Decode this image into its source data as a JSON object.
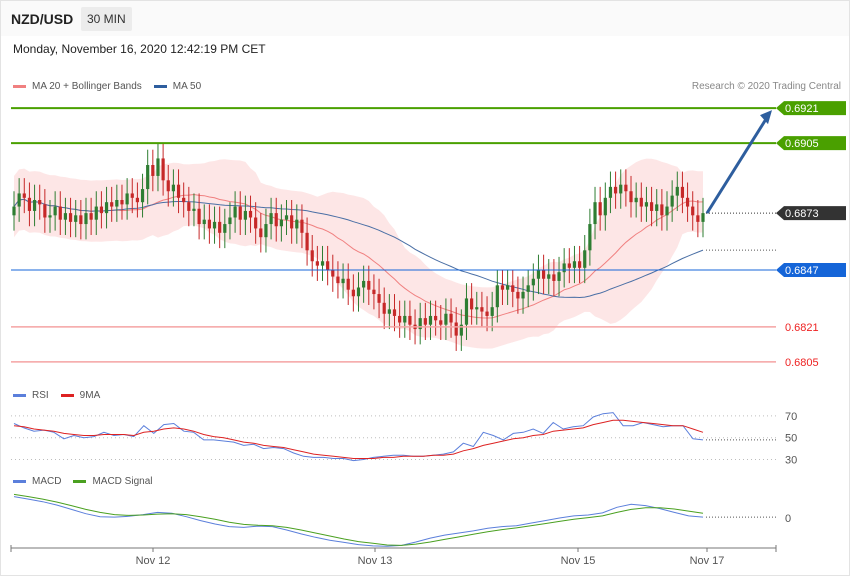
{
  "header": {
    "symbol": "NZD/USD",
    "timeframe": "30 MIN",
    "datetime": "Monday, November 16, 2020 12:42:19 PM CET"
  },
  "legend_main": [
    {
      "label": "MA 20 + Bollinger Bands",
      "color": "#f08080"
    },
    {
      "label": "MA 50",
      "color": "#2e5e9e"
    }
  ],
  "legend_rsi": [
    {
      "label": "RSI",
      "color": "#5b7fdb"
    },
    {
      "label": "9MA",
      "color": "#dd2222"
    }
  ],
  "legend_macd": [
    {
      "label": "MACD",
      "color": "#5b7fdb"
    },
    {
      "label": "MACD Signal",
      "color": "#4aa020"
    }
  ],
  "credit": "Research © 2020 Trading Central",
  "colors": {
    "up": "#2e7d32",
    "down": "#c62828",
    "band": "#fde2e2",
    "ma20": "#f08080",
    "ma50": "#4a6fa5",
    "arrow": "#2e5e9e"
  },
  "chart_data": [
    {
      "type": "candlestick",
      "symbol": "NZD/USD",
      "x_ticks": [
        "Nov 12",
        "Nov 13",
        "Nov 15",
        "Nov 17"
      ],
      "ylim": [
        0.6799,
        0.6927
      ],
      "levels": [
        {
          "value": 0.6921,
          "label": "0.6921",
          "style": "resistance",
          "color": "#4aa000"
        },
        {
          "value": 0.6905,
          "label": "0.6905",
          "style": "resistance",
          "color": "#4aa000"
        },
        {
          "value": 0.6873,
          "label": "0.6873",
          "style": "last",
          "color": "#333333"
        },
        {
          "value": 0.6847,
          "label": "0.6847",
          "style": "pivot",
          "color": "#1565d8"
        },
        {
          "value": 0.6821,
          "label": "0.6821",
          "style": "support",
          "color": "#ee2222"
        },
        {
          "value": 0.6805,
          "label": "0.6805",
          "style": "support",
          "color": "#ee2222"
        }
      ],
      "close": [
        0.6876,
        0.6882,
        0.688,
        0.6874,
        0.6879,
        0.6877,
        0.6871,
        0.6872,
        0.6876,
        0.687,
        0.6873,
        0.6869,
        0.6872,
        0.6868,
        0.6873,
        0.687,
        0.6876,
        0.6873,
        0.6878,
        0.6876,
        0.6879,
        0.6877,
        0.6882,
        0.688,
        0.6878,
        0.6884,
        0.6895,
        0.689,
        0.6898,
        0.6888,
        0.6883,
        0.6886,
        0.688,
        0.6878,
        0.6874,
        0.6875,
        0.6868,
        0.687,
        0.6866,
        0.6869,
        0.6864,
        0.6868,
        0.6871,
        0.6876,
        0.687,
        0.6874,
        0.6871,
        0.6866,
        0.6862,
        0.6868,
        0.6873,
        0.6867,
        0.687,
        0.6872,
        0.6866,
        0.687,
        0.6864,
        0.6856,
        0.6851,
        0.6849,
        0.6851,
        0.6847,
        0.6844,
        0.6841,
        0.6843,
        0.6838,
        0.6835,
        0.6839,
        0.6842,
        0.6838,
        0.6836,
        0.6832,
        0.6827,
        0.6829,
        0.6826,
        0.6823,
        0.6826,
        0.6822,
        0.682,
        0.6825,
        0.6822,
        0.6826,
        0.6824,
        0.6822,
        0.6827,
        0.6823,
        0.6817,
        0.6822,
        0.6834,
        0.6829,
        0.683,
        0.6828,
        0.6826,
        0.683,
        0.684,
        0.6838,
        0.684,
        0.6837,
        0.6834,
        0.6837,
        0.684,
        0.6843,
        0.6847,
        0.6843,
        0.6845,
        0.6842,
        0.6846,
        0.685,
        0.6848,
        0.6851,
        0.6848,
        0.6856,
        0.6868,
        0.6878,
        0.6872,
        0.688,
        0.6885,
        0.6882,
        0.6886,
        0.6883,
        0.6878,
        0.688,
        0.6876,
        0.6878,
        0.6874,
        0.6877,
        0.6872,
        0.6876,
        0.6881,
        0.6885,
        0.688,
        0.6876,
        0.6872,
        0.6869,
        0.6873
      ],
      "series": [
        {
          "name": "MA 20 + Bollinger Bands",
          "kind": "band"
        },
        {
          "name": "MA 50",
          "kind": "line"
        }
      ]
    },
    {
      "type": "line",
      "name": "RSI panel",
      "y_ticks": [
        70,
        50,
        30
      ],
      "ylim": [
        25,
        80
      ],
      "series": [
        {
          "name": "RSI",
          "values": [
            63,
            59,
            56,
            57,
            55,
            49,
            52,
            50,
            51,
            55,
            52,
            53,
            51,
            61,
            54,
            62,
            63,
            56,
            55,
            48,
            48,
            47,
            46,
            43,
            44,
            40,
            41,
            40,
            36,
            33,
            32,
            32,
            31,
            31,
            29,
            30,
            32,
            33,
            34,
            34,
            33,
            33,
            34,
            35,
            37,
            45,
            42,
            55,
            52,
            48,
            54,
            55,
            58,
            54,
            64,
            58,
            60,
            61,
            69,
            72,
            73,
            61,
            61,
            64,
            62,
            60,
            61,
            61,
            49,
            48
          ]
        },
        {
          "name": "9MA",
          "values": [
            61,
            60,
            58,
            57,
            56,
            54,
            53,
            52,
            52,
            53,
            53,
            53,
            52,
            55,
            56,
            58,
            59,
            58,
            56,
            53,
            51,
            50,
            48,
            46,
            45,
            43,
            42,
            41,
            39,
            37,
            35,
            34,
            33,
            32,
            31,
            31,
            31,
            32,
            32,
            33,
            33,
            33,
            34,
            34,
            35,
            38,
            40,
            43,
            45,
            47,
            49,
            50,
            52,
            53,
            56,
            57,
            58,
            59,
            62,
            64,
            66,
            66,
            65,
            64,
            63,
            62,
            61,
            61,
            58,
            55
          ]
        }
      ]
    },
    {
      "type": "line",
      "name": "MACD panel",
      "y_ticks": [
        0
      ],
      "ylim": [
        -0.0007,
        0.0007
      ],
      "series": [
        {
          "name": "MACD",
          "values": [
            0.0005,
            0.00044,
            0.00038,
            0.0003,
            0.0002,
            0.0001,
            3e-05,
            2e-05,
            4e-05,
            8e-05,
            0.00013,
            0.00011,
            3e-05,
            -6e-05,
            -0.00014,
            -0.0002,
            -0.00022,
            -0.00019,
            -0.0002,
            -0.00028,
            -0.00037,
            -0.00045,
            -0.00052,
            -0.00057,
            -0.00062,
            -0.00065,
            -0.00066,
            -0.00064,
            -0.00056,
            -0.00047,
            -0.0004,
            -0.00035,
            -0.0003,
            -0.00024,
            -0.0002,
            -0.00018,
            -0.00012,
            -6e-05,
            0.0,
            5e-05,
            7e-05,
            0.00012,
            0.00025,
            0.00032,
            0.00029,
            0.00022,
            0.00013,
            5e-05,
            2e-05
          ]
        },
        {
          "name": "MACD Signal",
          "values": [
            0.00055,
            0.0005,
            0.00044,
            0.00037,
            0.00029,
            0.0002,
            0.00013,
            8e-05,
            6e-05,
            7e-05,
            9e-05,
            0.0001,
            8e-05,
            3e-05,
            -3e-05,
            -0.0001,
            -0.00015,
            -0.00017,
            -0.00018,
            -0.00022,
            -0.00028,
            -0.00035,
            -0.00042,
            -0.00049,
            -0.00055,
            -0.00059,
            -0.00063,
            -0.00064,
            -0.00061,
            -0.00056,
            -0.0005,
            -0.00044,
            -0.00038,
            -0.00032,
            -0.00027,
            -0.00023,
            -0.00018,
            -0.00013,
            -8e-05,
            -3e-05,
            1e-05,
            5e-05,
            0.00013,
            0.0002,
            0.00024,
            0.00024,
            0.00021,
            0.00016,
            0.00011
          ]
        }
      ]
    }
  ]
}
